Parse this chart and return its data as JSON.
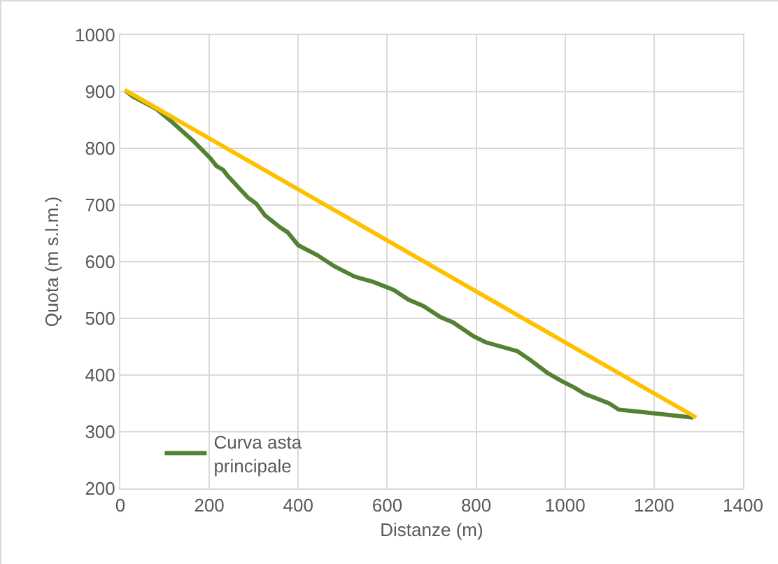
{
  "chart_data": {
    "type": "line",
    "xlabel": "Distanze (m)",
    "ylabel": "Quota (m s.l.m.)",
    "xlim": [
      0,
      1400
    ],
    "xticks": [
      0,
      200,
      400,
      600,
      800,
      1000,
      1200,
      1400
    ],
    "ylim": [
      200,
      1000
    ],
    "yticks": [
      200,
      300,
      400,
      500,
      600,
      700,
      800,
      900,
      1000
    ],
    "grid": true,
    "legend": "bottom left",
    "marker": "none",
    "line_style": "solid",
    "series": [
      {
        "name": "Curva asta principale",
        "color": "#548235",
        "x": [
          11,
          27,
          80,
          114,
          164,
          203,
          216,
          231,
          242,
          287,
          305,
          325,
          360,
          376,
          400,
          442,
          481,
          526,
          570,
          615,
          648,
          681,
          720,
          748,
          793,
          821,
          893,
          921,
          960,
          993,
          1021,
          1044,
          1099,
          1121,
          1183,
          1288
        ],
        "values": [
          902,
          892,
          870,
          848,
          813,
          782,
          769,
          762,
          751,
          713,
          703,
          682,
          660,
          652,
          629,
          612,
          592,
          574,
          564,
          550,
          533,
          522,
          502,
          493,
          469,
          458,
          442,
          427,
          404,
          389,
          378,
          367,
          350,
          339,
          334,
          325
        ]
      },
      {
        "color": "#ffc000",
        "x": [
          10,
          1295
        ],
        "values": [
          903,
          325
        ]
      }
    ]
  }
}
